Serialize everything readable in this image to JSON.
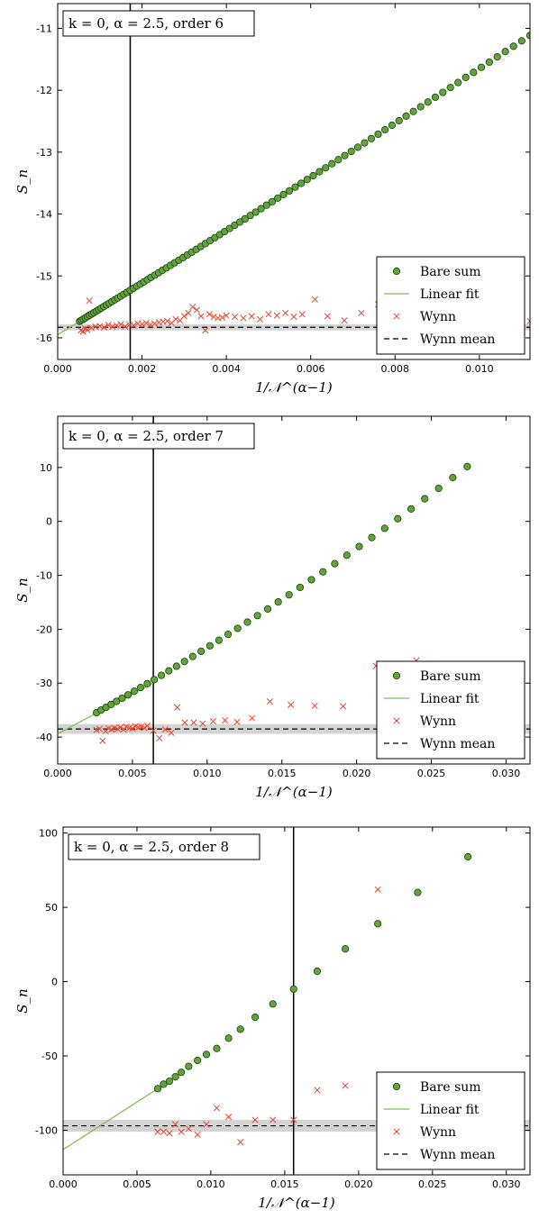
{
  "chart_data": [
    {
      "type": "scatter",
      "title": "k = 0, α = 2.5, order 6",
      "xlabel": "1/𝒩^(α−1)",
      "ylabel": "S_n",
      "xlim": [
        0.0,
        0.0112
      ],
      "ylim": [
        -16.35,
        -10.6
      ],
      "xticks": [
        0.0,
        0.002,
        0.004,
        0.006,
        0.008,
        0.01
      ],
      "xtick_labels": [
        "0.000",
        "0.002",
        "0.004",
        "0.006",
        "0.008",
        "0.010"
      ],
      "yticks": [
        -16,
        -15,
        -14,
        -13,
        -12,
        -11
      ],
      "ytick_labels": [
        "-16",
        "-15",
        "-14",
        "-13",
        "-12",
        "-11"
      ],
      "cutoff_x": 0.00172,
      "wynn_mean": -15.83,
      "wynn_band": [
        -15.88,
        -15.78
      ],
      "fit": {
        "intercept": -15.95,
        "slope": 415,
        "x_range": [
          0.0,
          0.00172
        ]
      },
      "bare_sum": {
        "x_min": 0.00052,
        "x_max": 0.0112,
        "n": 90,
        "a": -15.95,
        "b": 415,
        "c": 1500
      },
      "wynn_points": {
        "x": [
          0.00055,
          0.0006,
          0.00065,
          0.0007,
          0.00075,
          0.0008,
          0.0009,
          0.001,
          0.0011,
          0.0012,
          0.0013,
          0.0014,
          0.0015,
          0.0016,
          0.0017,
          0.0018,
          0.0019,
          0.002,
          0.0021,
          0.0022,
          0.0023,
          0.0024,
          0.0025,
          0.0026,
          0.0027,
          0.0028,
          0.0029,
          0.003,
          0.0031,
          0.0032,
          0.0033,
          0.0034,
          0.0035,
          0.0036,
          0.0037,
          0.0038,
          0.0039,
          0.004,
          0.0042,
          0.0044,
          0.0046,
          0.0048,
          0.005,
          0.0052,
          0.0054,
          0.0056,
          0.0058,
          0.0061,
          0.0064,
          0.0068,
          0.0072,
          0.0076,
          0.008,
          0.0085,
          0.0091,
          0.0097,
          0.0104,
          0.0112
        ],
        "y": [
          -15.88,
          -15.9,
          -15.85,
          -15.87,
          -15.4,
          -15.84,
          -15.82,
          -15.81,
          -15.83,
          -15.79,
          -15.82,
          -15.8,
          -15.78,
          -15.82,
          -15.79,
          -15.8,
          -15.77,
          -15.78,
          -15.76,
          -15.79,
          -15.77,
          -15.75,
          -15.74,
          -15.73,
          -15.76,
          -15.7,
          -15.72,
          -15.65,
          -15.6,
          -15.5,
          -15.55,
          -15.65,
          -15.88,
          -15.62,
          -15.66,
          -15.68,
          -15.67,
          -15.64,
          -15.66,
          -15.68,
          -15.65,
          -15.7,
          -15.62,
          -15.64,
          -15.6,
          -15.66,
          -15.62,
          -15.38,
          -15.65,
          -15.72,
          -15.6,
          -15.46,
          -15.76,
          -15.55,
          -15.3,
          -15.38,
          -15.72,
          -15.73
        ]
      },
      "legend": [
        "Bare sum",
        "Linear fit",
        "Wynn",
        "Wynn mean"
      ]
    },
    {
      "type": "scatter",
      "title": "k = 0, α = 2.5, order 7",
      "xlabel": "1/𝒩^(α−1)",
      "ylabel": "S_n",
      "xlim": [
        0.0,
        0.0316
      ],
      "ylim": [
        -45.0,
        19.5
      ],
      "xticks": [
        0.0,
        0.005,
        0.01,
        0.015,
        0.02,
        0.025,
        0.03
      ],
      "xtick_labels": [
        "0.000",
        "0.005",
        "0.010",
        "0.015",
        "0.020",
        "0.025",
        "0.030"
      ],
      "yticks": [
        -40,
        -30,
        -20,
        -10,
        0,
        10
      ],
      "ytick_labels": [
        "-40",
        "-30",
        "-20",
        "-10",
        "0",
        "10"
      ],
      "cutoff_x": 0.0064,
      "wynn_mean": -38.5,
      "wynn_band": [
        -39.4,
        -37.6
      ],
      "fit": {
        "intercept": -39.4,
        "slope": 1480,
        "x_range": [
          0.0,
          0.0064
        ]
      },
      "bare_sum": {
        "x_min": 0.0026,
        "x_max": 0.0274,
        "n": 40,
        "a": -39.4,
        "b": 1480,
        "c": 12000
      },
      "wynn_points": {
        "x": [
          0.0026,
          0.0028,
          0.003,
          0.0032,
          0.0034,
          0.0036,
          0.0038,
          0.004,
          0.0042,
          0.0044,
          0.0046,
          0.0048,
          0.005,
          0.0052,
          0.0054,
          0.0056,
          0.0058,
          0.006,
          0.0064,
          0.0068,
          0.0072,
          0.0076,
          0.008,
          0.0085,
          0.0091,
          0.0097,
          0.0104,
          0.0112,
          0.012,
          0.013,
          0.0142,
          0.0156,
          0.0172,
          0.0191,
          0.0213,
          0.024
        ],
        "y": [
          -38.7,
          -38.5,
          -40.7,
          -38.9,
          -38.4,
          -38.6,
          -38.3,
          -38.5,
          -38.2,
          -38.6,
          -38.1,
          -38.3,
          -38.4,
          -38.0,
          -38.2,
          -38.1,
          -38.3,
          -37.9,
          -38.8,
          -40.2,
          -38.6,
          -39.2,
          -34.5,
          -37.3,
          -37.3,
          -37.5,
          -37.1,
          -36.9,
          -37.2,
          -36.5,
          -33.4,
          -34.0,
          -34.2,
          -34.3,
          -26.8,
          -25.8
        ]
      },
      "legend": [
        "Bare sum",
        "Linear fit",
        "Wynn",
        "Wynn mean"
      ]
    },
    {
      "type": "scatter",
      "title": "k = 0, α = 2.5, order 8",
      "xlabel": "1/𝒩^(α−1)",
      "ylabel": "S_n",
      "xlim": [
        0.0,
        0.0316
      ],
      "ylim": [
        -130.0,
        104.0
      ],
      "xticks": [
        0.0,
        0.005,
        0.01,
        0.015,
        0.02,
        0.025,
        0.03
      ],
      "xtick_labels": [
        "0.000",
        "0.005",
        "0.010",
        "0.015",
        "0.020",
        "0.025",
        "0.030"
      ],
      "yticks": [
        -100,
        -50,
        0,
        50,
        100
      ],
      "ytick_labels": [
        "-100",
        "-50",
        "0",
        "50",
        "100"
      ],
      "cutoff_x": 0.0156,
      "wynn_mean": -97.0,
      "wynn_band": [
        -101.0,
        -93.0
      ],
      "fit": {
        "intercept": -113.0,
        "slope": 6400,
        "x_range": [
          0.0,
          0.0064
        ]
      },
      "bare_points": {
        "x": [
          0.0064,
          0.0068,
          0.0072,
          0.0076,
          0.008,
          0.0085,
          0.0091,
          0.0097,
          0.0104,
          0.0112,
          0.012,
          0.013,
          0.0142,
          0.0156,
          0.0172,
          0.0191,
          0.0213,
          0.024,
          0.0274
        ],
        "y": [
          -72,
          -69,
          -67,
          -64,
          -61,
          -57,
          -53,
          -49,
          -45,
          -38,
          -32,
          -24,
          -15,
          -5,
          7,
          22,
          39,
          60,
          84
        ]
      },
      "wynn_points": {
        "x": [
          0.0064,
          0.0068,
          0.0072,
          0.0076,
          0.008,
          0.0085,
          0.0091,
          0.0097,
          0.0104,
          0.0112,
          0.012,
          0.013,
          0.0142,
          0.0156,
          0.0172,
          0.0191,
          0.0213
        ],
        "y": [
          -101,
          -101,
          -102,
          -96,
          -101,
          -99,
          -103,
          -96,
          -85,
          -91,
          -108,
          -93,
          -93,
          -93,
          -73,
          -70,
          62
        ]
      },
      "legend": [
        "Bare sum",
        "Linear fit",
        "Wynn",
        "Wynn mean"
      ]
    }
  ]
}
